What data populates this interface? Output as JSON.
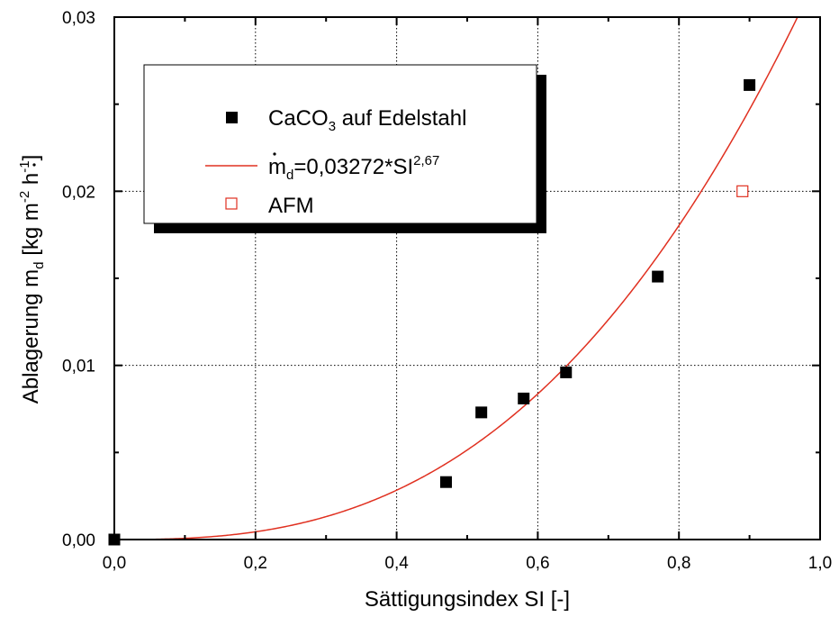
{
  "chart_data": {
    "type": "scatter",
    "xlabel": "Sättigungsindex SI [-]",
    "ylabel": {
      "main": "Ablagerung ",
      "m": "m",
      "sub": "d",
      "unit_open": " [kg m",
      "exp1": "-2",
      "unit_mid": " h",
      "exp2": "-1",
      "unit_close": "]"
    },
    "xlim": [
      0.0,
      1.0
    ],
    "ylim": [
      0.0,
      0.03
    ],
    "x_ticks": [
      {
        "value": 0.0,
        "label": "0,0"
      },
      {
        "value": 0.2,
        "label": "0,2"
      },
      {
        "value": 0.4,
        "label": "0,4"
      },
      {
        "value": 0.6,
        "label": "0,6"
      },
      {
        "value": 0.8,
        "label": "0,8"
      },
      {
        "value": 1.0,
        "label": "1,0"
      }
    ],
    "y_ticks": [
      {
        "value": 0.0,
        "label": "0,00"
      },
      {
        "value": 0.01,
        "label": "0,01"
      },
      {
        "value": 0.02,
        "label": "0,02"
      },
      {
        "value": 0.03,
        "label": "0,03"
      }
    ],
    "grid": true,
    "legend_position": "top-left",
    "series": [
      {
        "kind": "scatter",
        "marker": "filled-square",
        "color": "#000000",
        "legend": {
          "main": "CaCO",
          "sub": "3",
          "rest": " auf Edelstahl"
        },
        "x": [
          0.0,
          0.47,
          0.52,
          0.58,
          0.64,
          0.77,
          0.9
        ],
        "y": [
          0.0,
          0.0033,
          0.0073,
          0.0081,
          0.0096,
          0.0151,
          0.0261
        ]
      },
      {
        "kind": "fit",
        "color": "#e03020",
        "coefficient": 0.03272,
        "exponent": 2.67,
        "legend": {
          "m": "m",
          "sub": "d",
          "eq": "=0,03272*SI",
          "sup": "2,67"
        }
      },
      {
        "kind": "scatter",
        "marker": "open-square",
        "color": "#e03020",
        "legend": {
          "text": "AFM"
        },
        "x": [
          0.89
        ],
        "y": [
          0.02
        ]
      }
    ]
  }
}
